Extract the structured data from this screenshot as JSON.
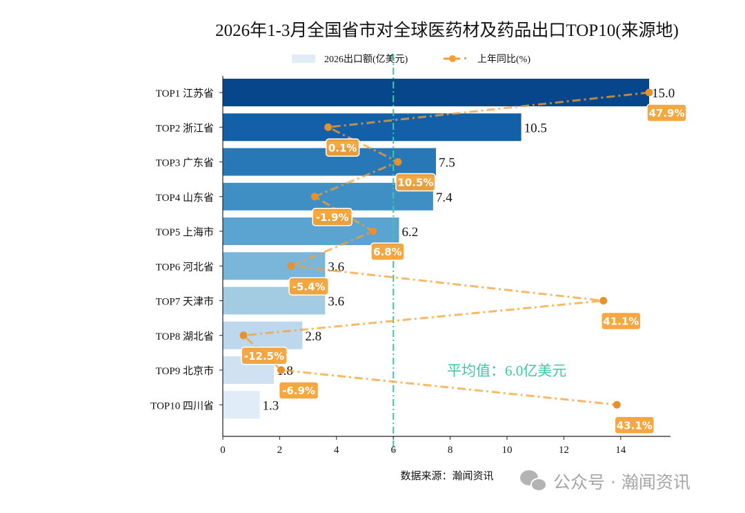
{
  "chart_data": {
    "type": "bar",
    "orientation": "horizontal",
    "title": "2026年1-3月全国省市对全球医药材及药品出口TOP10(来源地)",
    "categories": [
      "TOP1 江苏省",
      "TOP2 浙江省",
      "TOP3 广东省",
      "TOP4 山东省",
      "TOP5 上海市",
      "TOP6 河北省",
      "TOP7 天津市",
      "TOP8 湖北省",
      "TOP9 北京市",
      "TOP10 四川省"
    ],
    "series": [
      {
        "name": "2026出口额(亿美元)",
        "type": "bar",
        "values": [
          15.0,
          10.5,
          7.5,
          7.4,
          6.2,
          3.6,
          3.6,
          2.8,
          1.8,
          1.3
        ],
        "value_labels": [
          "15.0",
          "10.5",
          "7.5",
          "7.4",
          "6.2",
          "3.6",
          "3.6",
          "2.8",
          "1.8",
          "1.3"
        ]
      },
      {
        "name": "上年同比(%)",
        "type": "line",
        "axis": "secondary (hidden)",
        "values": [
          47.9,
          0.1,
          10.5,
          -1.9,
          6.8,
          -5.4,
          41.1,
          -12.5,
          -6.9,
          43.1
        ],
        "value_labels": [
          "47.9%",
          "0.1%",
          "10.5%",
          "-1.9%",
          "6.8%",
          "-5.4%",
          "41.1%",
          "-12.5%",
          "-6.9%",
          "43.1%"
        ]
      }
    ],
    "xlim": [
      0,
      15.8
    ],
    "xticks": [
      "0",
      "2",
      "4",
      "6",
      "8",
      "10",
      "12",
      "14"
    ],
    "average": {
      "value": 6.0,
      "label": "平均值：6.0亿美元",
      "color": "#3cc8a8"
    },
    "bar_colors": [
      "#08468b",
      "#1460a8",
      "#2878b8",
      "#3f8fc5",
      "#5ba3d0",
      "#7ab6d9",
      "#a3cce3",
      "#bdd7ec",
      "#d0e1f2",
      "#e0ecf7"
    ],
    "line_color": "#f5a030",
    "legend": "top-center",
    "grid": false
  },
  "source": "数据来源：瀚闻资讯",
  "watermark": "公众号 · 瀚闻资讯"
}
